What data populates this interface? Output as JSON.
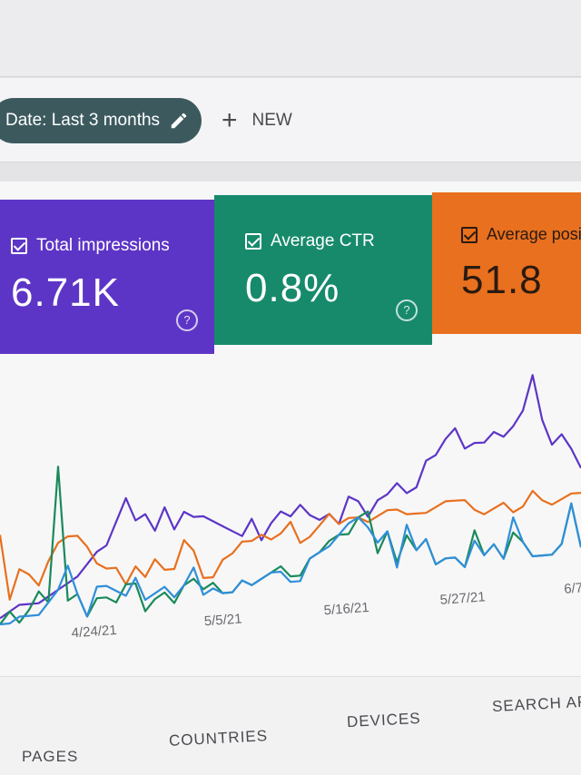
{
  "toolbar": {
    "date_filter": "Date: Last 3 months",
    "new_label": "NEW"
  },
  "metrics": [
    {
      "label": "Total impressions",
      "value": "6.71K",
      "color": "#5d35c6"
    },
    {
      "label": "Average CTR",
      "value": "0.8%",
      "color": "#178a6c"
    },
    {
      "label": "Average positi",
      "value": "51.8",
      "color": "#e8701e"
    }
  ],
  "chart_data": {
    "type": "line",
    "x_tick_labels": [
      "4/24/21",
      "5/5/21",
      "5/16/21",
      "5/27/21",
      "6/7"
    ],
    "series": [
      {
        "color": "#5d35c6",
        "values": [
          1,
          2,
          3,
          3,
          3,
          4,
          5,
          6,
          7,
          9,
          11,
          12,
          16,
          20,
          16,
          17,
          14,
          18,
          14,
          17,
          16,
          16,
          15,
          14,
          13,
          12,
          15,
          11,
          14,
          16,
          15,
          17,
          15,
          14,
          15,
          13,
          18,
          17,
          14,
          17,
          18,
          20,
          18,
          19,
          24,
          25,
          28,
          30,
          26,
          27,
          27,
          29,
          28,
          30,
          33,
          40,
          31,
          26,
          28,
          25,
          21
        ]
      },
      {
        "color": "#e8701e",
        "values": [
          15,
          4,
          9,
          8,
          6,
          10,
          13,
          14,
          14,
          12,
          9,
          8,
          8,
          5,
          8,
          6,
          9,
          7,
          7,
          12,
          10,
          5,
          5,
          8,
          9,
          11,
          11,
          12,
          11,
          12,
          14,
          10,
          11,
          13,
          15,
          13,
          14,
          14,
          13,
          14,
          15,
          15,
          14,
          14,
          14,
          15,
          16,
          16,
          16,
          14,
          13,
          14,
          15,
          13,
          14,
          17,
          15,
          14,
          15,
          16,
          16
        ]
      },
      {
        "color": "#1a8a5a",
        "values": [
          0,
          2,
          0,
          2,
          5,
          3,
          26,
          3,
          4,
          0,
          3,
          3,
          2,
          5,
          5,
          0,
          2,
          3,
          1,
          4,
          5,
          3,
          4,
          2,
          2,
          4,
          3,
          4,
          5,
          6,
          4,
          4,
          7,
          8,
          10,
          11,
          11,
          14,
          15,
          7,
          11,
          5,
          10,
          7,
          9,
          4,
          5,
          5,
          3,
          10,
          5,
          7,
          4,
          9,
          7,
          4,
          4,
          4,
          6,
          14,
          5
        ]
      },
      {
        "color": "#2f8fd8",
        "values": [
          0,
          0,
          1,
          1,
          1,
          3,
          5,
          9,
          4,
          0,
          5,
          5,
          4,
          3,
          6,
          2,
          3,
          4,
          2,
          4,
          7,
          2,
          3,
          2,
          2,
          4,
          3,
          4,
          5,
          5,
          3,
          3,
          7,
          8,
          9,
          11,
          13,
          14,
          12,
          9,
          11,
          4,
          12,
          7,
          9,
          4,
          5,
          5,
          3,
          8,
          5,
          7,
          4,
          12,
          7,
          4,
          4,
          4,
          6,
          14,
          5
        ]
      }
    ]
  },
  "tabs": [
    "PAGES",
    "COUNTRIES",
    "DEVICES",
    "SEARCH APP"
  ]
}
